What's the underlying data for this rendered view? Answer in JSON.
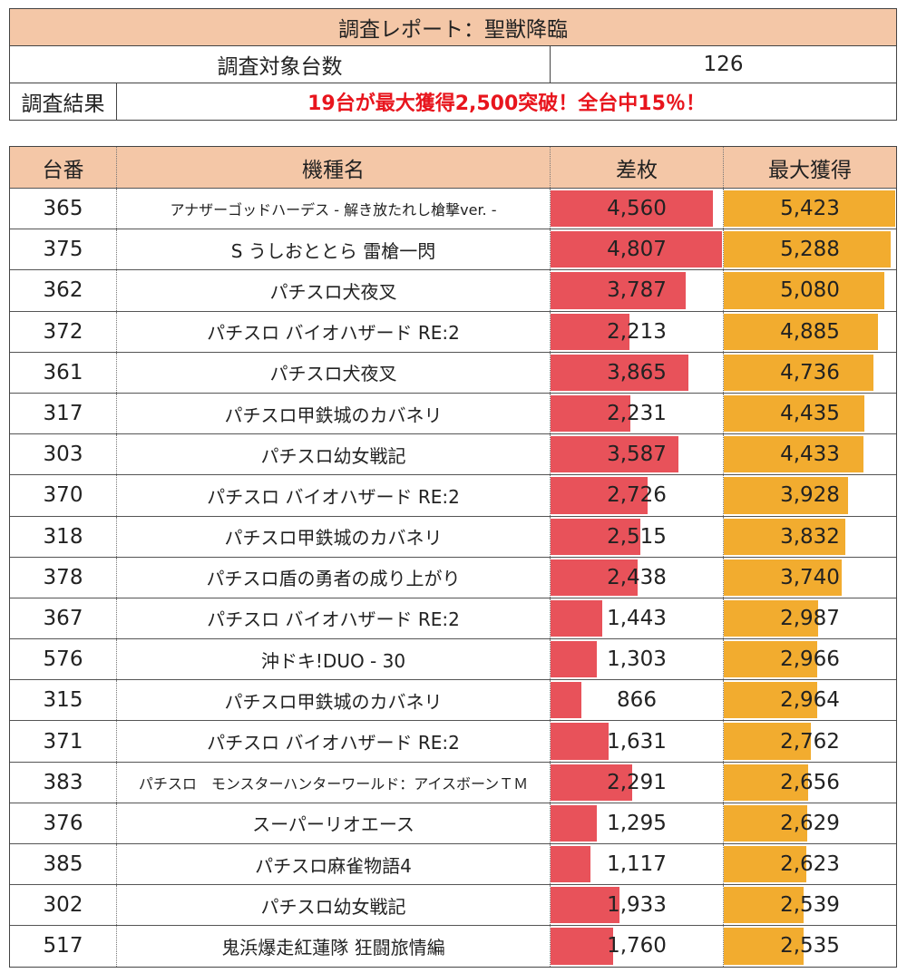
{
  "report": {
    "title": "調査レポート：聖獣降臨",
    "target_label": "調査対象台数",
    "target_value": "126",
    "result_label": "調査結果",
    "result_text": "19台が最大獲得2,500突破！全台中15％！"
  },
  "table": {
    "headers": [
      "台番",
      "機種名",
      "差枚",
      "最大獲得"
    ],
    "colors": {
      "header_bg": "#f4c7a7",
      "diff_bar": "#e8525a",
      "max_bar": "#f2ac2f",
      "result_text": "#e8151d"
    },
    "rows": [
      {
        "no": "365",
        "name": "アナザーゴッドハーデス - 解き放たれし槍撃ver. -",
        "diff": "4,560",
        "max": "5,423",
        "diff_num": 4560,
        "max_num": 5423
      },
      {
        "no": "375",
        "name": "S うしおととら 雷槍一閃",
        "diff": "4,807",
        "max": "5,288",
        "diff_num": 4807,
        "max_num": 5288
      },
      {
        "no": "362",
        "name": "パチスロ犬夜叉",
        "diff": "3,787",
        "max": "5,080",
        "diff_num": 3787,
        "max_num": 5080
      },
      {
        "no": "372",
        "name": "パチスロ バイオハザード RE:2",
        "diff": "2,213",
        "max": "4,885",
        "diff_num": 2213,
        "max_num": 4885
      },
      {
        "no": "361",
        "name": "パチスロ犬夜叉",
        "diff": "3,865",
        "max": "4,736",
        "diff_num": 3865,
        "max_num": 4736
      },
      {
        "no": "317",
        "name": "パチスロ甲鉄城のカバネリ",
        "diff": "2,231",
        "max": "4,435",
        "diff_num": 2231,
        "max_num": 4435
      },
      {
        "no": "303",
        "name": "パチスロ幼女戦記",
        "diff": "3,587",
        "max": "4,433",
        "diff_num": 3587,
        "max_num": 4433
      },
      {
        "no": "370",
        "name": "パチスロ バイオハザード RE:2",
        "diff": "2,726",
        "max": "3,928",
        "diff_num": 2726,
        "max_num": 3928
      },
      {
        "no": "318",
        "name": "パチスロ甲鉄城のカバネリ",
        "diff": "2,515",
        "max": "3,832",
        "diff_num": 2515,
        "max_num": 3832
      },
      {
        "no": "378",
        "name": "パチスロ盾の勇者の成り上がり",
        "diff": "2,438",
        "max": "3,740",
        "diff_num": 2438,
        "max_num": 3740
      },
      {
        "no": "367",
        "name": "パチスロ バイオハザード RE:2",
        "diff": "1,443",
        "max": "2,987",
        "diff_num": 1443,
        "max_num": 2987
      },
      {
        "no": "576",
        "name": "沖ドキ!DUO - 30",
        "diff": "1,303",
        "max": "2,966",
        "diff_num": 1303,
        "max_num": 2966
      },
      {
        "no": "315",
        "name": "パチスロ甲鉄城のカバネリ",
        "diff": "866",
        "max": "2,964",
        "diff_num": 866,
        "max_num": 2964
      },
      {
        "no": "371",
        "name": "パチスロ バイオハザード RE:2",
        "diff": "1,631",
        "max": "2,762",
        "diff_num": 1631,
        "max_num": 2762
      },
      {
        "no": "383",
        "name": "パチスロ　モンスターハンターワールド：アイスボーンＴＭ",
        "diff": "2,291",
        "max": "2,656",
        "diff_num": 2291,
        "max_num": 2656
      },
      {
        "no": "376",
        "name": "スーパーリオエース",
        "diff": "1,295",
        "max": "2,629",
        "diff_num": 1295,
        "max_num": 2629
      },
      {
        "no": "385",
        "name": "パチスロ麻雀物語4",
        "diff": "1,117",
        "max": "2,623",
        "diff_num": 1117,
        "max_num": 2623
      },
      {
        "no": "302",
        "name": "パチスロ幼女戦記",
        "diff": "1,933",
        "max": "2,539",
        "diff_num": 1933,
        "max_num": 2539
      },
      {
        "no": "517",
        "name": "鬼浜爆走紅蓮隊 狂闘旅情編",
        "diff": "1,760",
        "max": "2,535",
        "diff_num": 1760,
        "max_num": 2535
      }
    ]
  }
}
